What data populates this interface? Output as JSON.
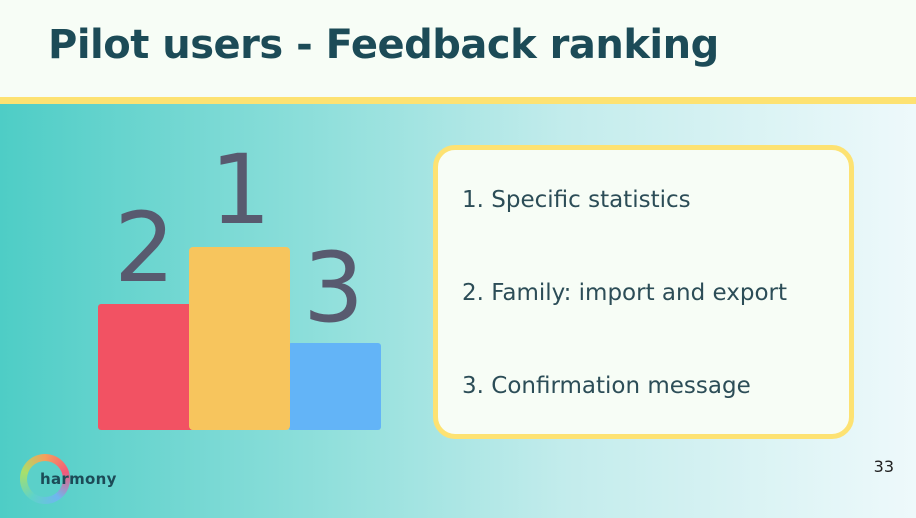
{
  "slide": {
    "title": "Pilot users - Feedback ranking",
    "page_number": "33"
  },
  "podium": {
    "icon": "podium-icon",
    "places": [
      {
        "rank": "1",
        "color": "#f7c55d"
      },
      {
        "rank": "2",
        "color": "#f25263"
      },
      {
        "rank": "3",
        "color": "#63b4f7"
      }
    ]
  },
  "ranking": {
    "items": [
      "1. Specific statistics",
      "2. Family: import and export",
      "3. Confirmation message"
    ]
  },
  "logo": {
    "text": "harmony",
    "icon": "harmony-ring-logo-icon"
  },
  "colors": {
    "title": "#1c4b57",
    "accent_yellow": "#fde272",
    "teal": "#4ecdc6"
  }
}
